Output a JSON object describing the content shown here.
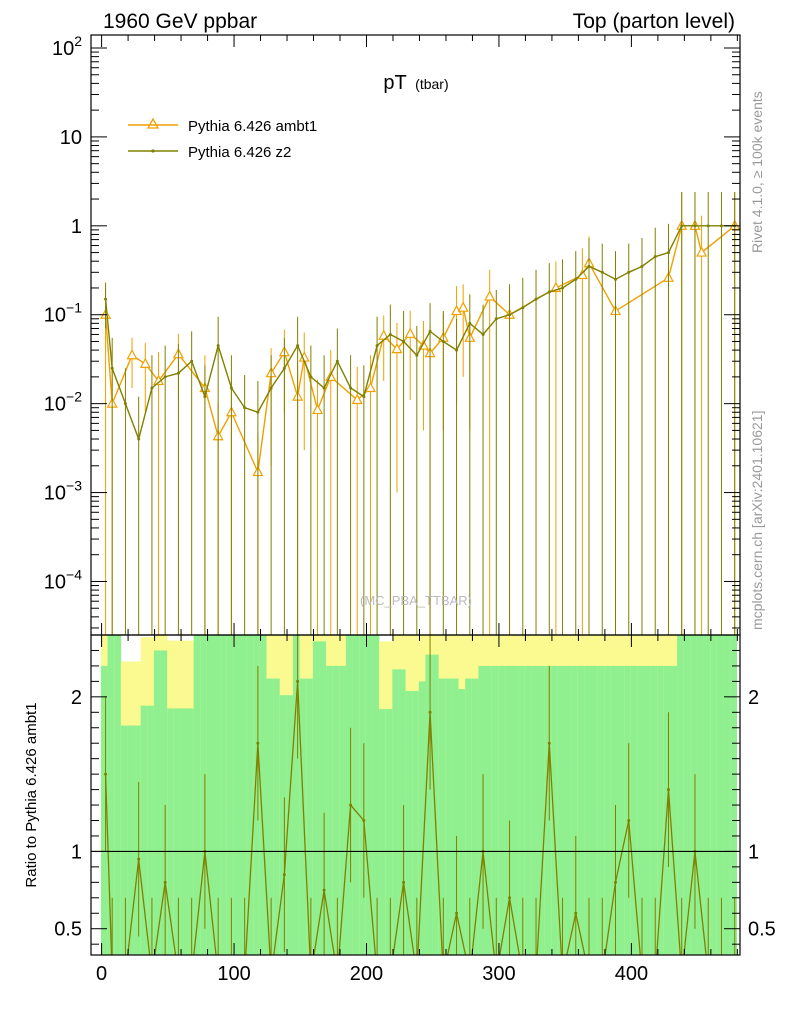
{
  "header": {
    "left": "1960 GeV ppbar",
    "right": "Top (parton level)"
  },
  "side": {
    "rivet": "Rivet 4.1.0, ≥ 100k events",
    "mcplots": "mcplots.cern.ch [arXiv:2401.10621]"
  },
  "colors": {
    "ambt1": "#f0a000",
    "z2": "#808000",
    "band_green": "#90f090",
    "band_yellow": "#fafa90"
  },
  "chart_data": {
    "type": "line",
    "title_main": "pT",
    "title_sub": "(tbar)",
    "watermark": "(MC_PBA_TTBAR)",
    "ylabel_ratio": "Ratio to Pythia 6.426 ambt1",
    "xlim": [
      -8,
      482
    ],
    "ylim_main": [
      2.5e-05,
      140
    ],
    "ylim_ratio": [
      0.33,
      2.4
    ],
    "yscale_main": "log",
    "legend": {
      "position": "top-left",
      "entries": [
        "Pythia 6.426 ambt1",
        "Pythia 6.426 z2"
      ]
    },
    "x_ticks": [
      0,
      100,
      200,
      300,
      400
    ],
    "y_ticks_main": [
      {
        "value": 100,
        "base": "10",
        "exp": "2"
      },
      {
        "value": 10,
        "base": "10",
        "exp": ""
      },
      {
        "value": 1,
        "base": "1",
        "exp": ""
      },
      {
        "value": 0.1,
        "base": "10",
        "exp": "−1"
      },
      {
        "value": 0.01,
        "base": "10",
        "exp": "−2"
      },
      {
        "value": 0.001,
        "base": "10",
        "exp": "−3"
      },
      {
        "value": 0.0001,
        "base": "10",
        "exp": "−4"
      }
    ],
    "y_ticks_ratio": [
      {
        "value": 0.5,
        "label": "0.5"
      },
      {
        "value": 1,
        "label": "1"
      },
      {
        "value": 2,
        "label": "2"
      }
    ],
    "bin_width": 5,
    "series": [
      {
        "name": "Pythia 6.426 ambt1",
        "marker": "triangle",
        "x": [
          3,
          8,
          23,
          33,
          43,
          58,
          78,
          88,
          98,
          118,
          128,
          138,
          148,
          153,
          163,
          173,
          193,
          203,
          213,
          223,
          233,
          243,
          248,
          258,
          268,
          273,
          278,
          293,
          308,
          343,
          363,
          368,
          388,
          428,
          438,
          448,
          453,
          478
        ],
        "y": [
          0.1,
          0.01,
          0.035,
          0.028,
          0.018,
          0.036,
          0.015,
          0.0043,
          0.008,
          0.0017,
          0.022,
          0.038,
          0.012,
          0.033,
          0.0085,
          0.02,
          0.011,
          0.015,
          0.058,
          0.041,
          0.061,
          0.045,
          0.037,
          0.055,
          0.11,
          0.12,
          0.055,
          0.16,
          0.1,
          0.2,
          0.28,
          0.38,
          0.11,
          0.26,
          1.0,
          1.0,
          0.5,
          1.0
        ],
        "yerr": [
          0.1,
          0.015,
          0.02,
          0.02,
          0.02,
          0.025,
          0.02,
          0.006,
          0.01,
          0.003,
          0.02,
          0.03,
          0.015,
          0.03,
          0.01,
          0.02,
          0.015,
          0.02,
          0.04,
          0.04,
          0.05,
          0.04,
          0.04,
          0.05,
          0.1,
          0.1,
          0.05,
          0.16,
          0.1,
          0.2,
          0.28,
          0.38,
          0.11,
          0.26,
          1.4,
          1.4,
          0.8,
          1.4
        ]
      },
      {
        "name": "Pythia 6.426 z2",
        "marker": "dot",
        "x": [
          3,
          8,
          18,
          28,
          38,
          48,
          58,
          68,
          78,
          88,
          98,
          108,
          118,
          128,
          138,
          148,
          158,
          168,
          178,
          188,
          198,
          208,
          218,
          228,
          238,
          248,
          258,
          268,
          278,
          288,
          298,
          308,
          318,
          328,
          338,
          348,
          358,
          368,
          378,
          388,
          398,
          408,
          418,
          428,
          438,
          448,
          458,
          468,
          478
        ],
        "y": [
          0.15,
          0.025,
          0.01,
          0.004,
          0.015,
          0.02,
          0.022,
          0.03,
          0.012,
          0.045,
          0.015,
          0.009,
          0.008,
          0.015,
          0.025,
          0.045,
          0.02,
          0.015,
          0.03,
          0.015,
          0.012,
          0.045,
          0.06,
          0.05,
          0.035,
          0.065,
          0.05,
          0.04,
          0.08,
          0.06,
          0.09,
          0.1,
          0.12,
          0.15,
          0.18,
          0.2,
          0.25,
          0.35,
          0.3,
          0.25,
          0.3,
          0.35,
          0.45,
          0.5,
          1.0,
          1.0,
          1.0,
          1.0,
          1.0
        ],
        "yerr": [
          0.08,
          0.03,
          0.015,
          0.008,
          0.02,
          0.025,
          0.025,
          0.035,
          0.015,
          0.05,
          0.02,
          0.012,
          0.01,
          0.02,
          0.03,
          0.05,
          0.025,
          0.02,
          0.04,
          0.02,
          0.015,
          0.05,
          0.07,
          0.06,
          0.04,
          0.07,
          0.06,
          0.05,
          0.09,
          0.07,
          0.1,
          0.12,
          0.14,
          0.17,
          0.2,
          0.22,
          0.27,
          0.37,
          0.33,
          0.27,
          0.33,
          0.38,
          0.5,
          0.55,
          1.4,
          1.4,
          1.4,
          1.4,
          1.4
        ]
      }
    ],
    "ratio_z2": {
      "x": [
        3,
        8,
        18,
        28,
        38,
        48,
        58,
        68,
        78,
        88,
        98,
        108,
        118,
        128,
        138,
        148,
        158,
        168,
        178,
        188,
        198,
        208,
        218,
        228,
        238,
        248,
        258,
        268,
        278,
        288,
        298,
        308,
        318,
        328,
        338,
        348,
        358,
        368,
        378,
        388,
        398,
        408,
        418,
        428,
        438,
        448,
        458,
        468,
        478
      ],
      "y": [
        1.5,
        0.2,
        0.2,
        0.95,
        0.2,
        0.8,
        0.2,
        0.2,
        1.0,
        0.2,
        0.2,
        0.2,
        1.7,
        0.2,
        0.85,
        2.1,
        0.2,
        0.75,
        0.2,
        1.3,
        1.2,
        0.2,
        0.2,
        0.8,
        0.2,
        1.9,
        0.2,
        0.6,
        0.2,
        1.0,
        0.2,
        0.7,
        0.2,
        0.2,
        1.7,
        0.2,
        0.6,
        0.2,
        0.2,
        0.8,
        1.2,
        0.2,
        0.2,
        1.4,
        0.2,
        1.0,
        0.2,
        0.2,
        0.2
      ]
    }
  }
}
